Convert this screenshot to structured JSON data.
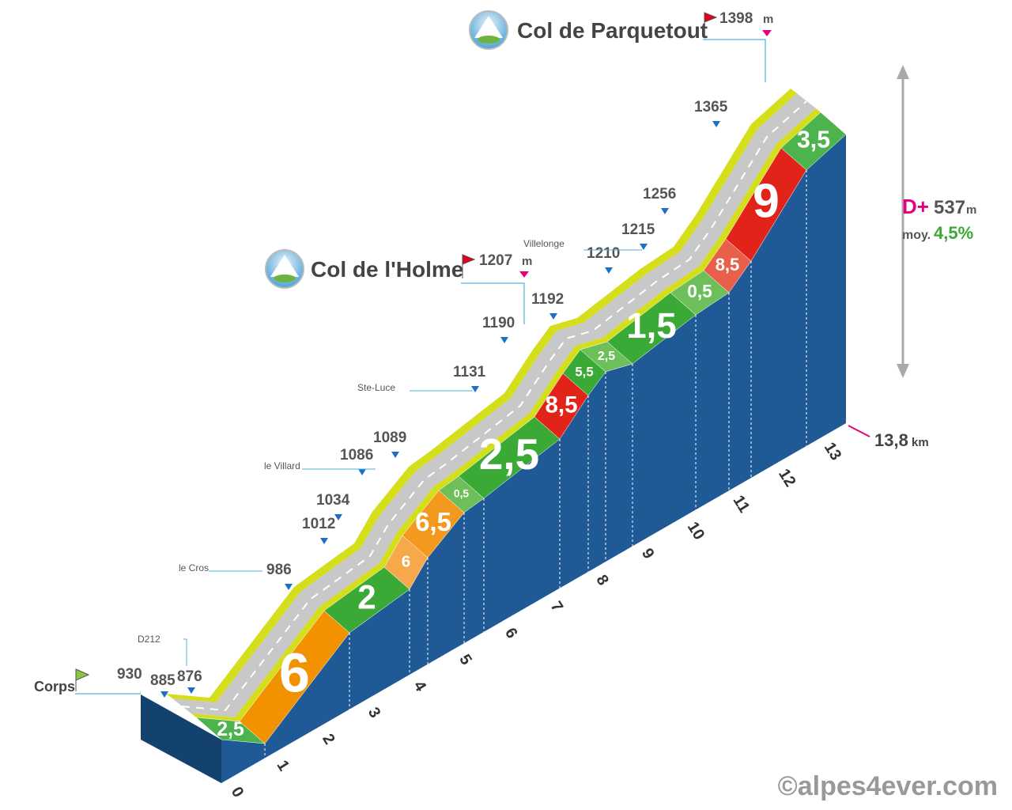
{
  "summits": [
    {
      "name": "Col de Parquetout",
      "altitude": "1398",
      "unit": "m"
    },
    {
      "name": "Col de l'Holme",
      "altitude": "1207",
      "unit": "m"
    }
  ],
  "start": {
    "name": "Corps",
    "altitude": "930"
  },
  "altitudes": [
    "885",
    "876",
    "986",
    "1012",
    "1034",
    "1086",
    "1089",
    "1131",
    "1190",
    "1192",
    "1210",
    "1215",
    "1256",
    "1365"
  ],
  "places": [
    "D212",
    "le Cros",
    "le Villard",
    "Ste-Luce",
    "Villelonge"
  ],
  "gradients": [
    {
      "label": "2,5",
      "color": "#4db34d"
    },
    {
      "label": "6",
      "color": "#f39200"
    },
    {
      "label": "2",
      "color": "#3aa935"
    },
    {
      "label": "6",
      "color": "#f6a84a"
    },
    {
      "label": "6,5",
      "color": "#f39a1e"
    },
    {
      "label": "0,5",
      "color": "#6dbf5a"
    },
    {
      "label": "2,5",
      "color": "#3aa935"
    },
    {
      "label": "8,5",
      "color": "#e2231a"
    },
    {
      "label": "5,5",
      "color": "#3aa935"
    },
    {
      "label": "2,5",
      "color": "#6dbf5a"
    },
    {
      "label": "1,5",
      "color": "#3aa935"
    },
    {
      "label": "0,5",
      "color": "#6dbf5a"
    },
    {
      "label": "8,5",
      "color": "#e8604a"
    },
    {
      "label": "9",
      "color": "#e2231a"
    },
    {
      "label": "3,5",
      "color": "#4db34d"
    }
  ],
  "km_markers": [
    "0",
    "1",
    "2",
    "3",
    "4",
    "5",
    "6",
    "7",
    "8",
    "9",
    "10",
    "11",
    "12",
    "13"
  ],
  "distance": {
    "value": "13,8",
    "unit": "km"
  },
  "climb": {
    "label": "D+",
    "value": "537",
    "unit": "m",
    "avg_label": "moy.",
    "avg": "4,5%"
  },
  "credit": "©alpes4ever.com"
}
